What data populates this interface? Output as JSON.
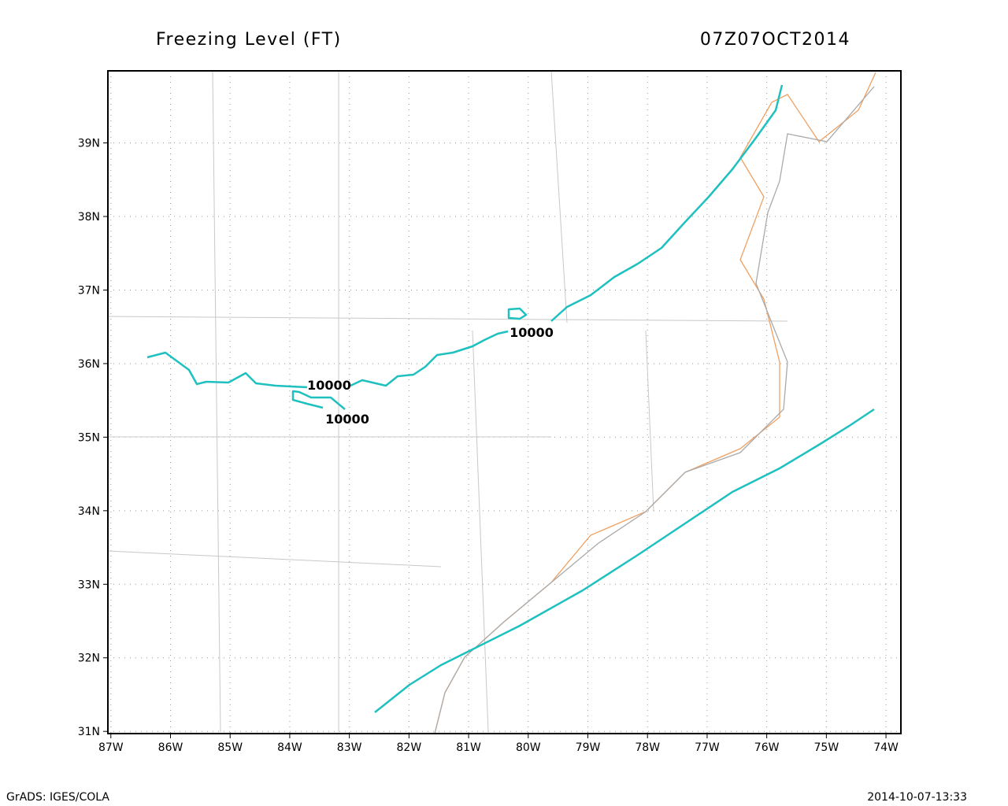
{
  "header": {
    "title": "Freezing Level (FT)",
    "time": "07Z07OCT2014"
  },
  "map": {
    "xlim": [
      -87.05,
      -73.75
    ],
    "ylim": [
      30.97,
      39.98
    ],
    "xticks": [
      {
        "value": -87,
        "label": "87W"
      },
      {
        "value": -86,
        "label": "86W"
      },
      {
        "value": -85,
        "label": "85W"
      },
      {
        "value": -84,
        "label": "84W"
      },
      {
        "value": -83,
        "label": "83W"
      },
      {
        "value": -82,
        "label": "82W"
      },
      {
        "value": -81,
        "label": "81W"
      },
      {
        "value": -80,
        "label": "80W"
      },
      {
        "value": -79,
        "label": "79W"
      },
      {
        "value": -78,
        "label": "78W"
      },
      {
        "value": -77,
        "label": "77W"
      },
      {
        "value": -76,
        "label": "76W"
      },
      {
        "value": -75,
        "label": "75W"
      },
      {
        "value": -74,
        "label": "74W"
      }
    ],
    "yticks": [
      {
        "value": 31,
        "label": "31N"
      },
      {
        "value": 32,
        "label": "32N"
      },
      {
        "value": 33,
        "label": "33N"
      },
      {
        "value": 34,
        "label": "34N"
      },
      {
        "value": 35,
        "label": "35N"
      },
      {
        "value": 36,
        "label": "36N"
      },
      {
        "value": 37,
        "label": "37N"
      },
      {
        "value": 38,
        "label": "38N"
      },
      {
        "value": 39,
        "label": "39N"
      }
    ],
    "contour_labels": [
      "10000",
      "10000",
      "10000"
    ]
  },
  "footer": {
    "left": "GrADS: IGES/COLA",
    "right": "2014-10-07-13:33"
  }
}
